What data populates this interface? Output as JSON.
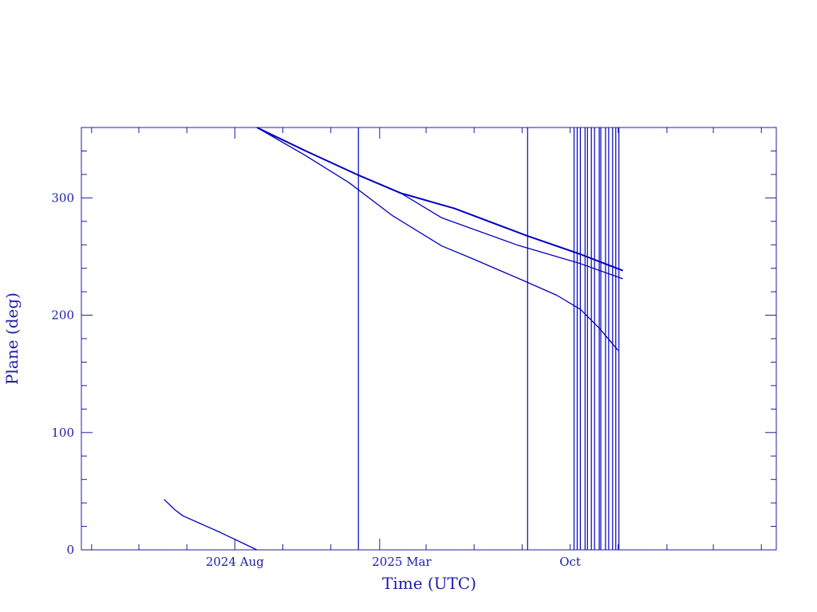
{
  "chart_data": {
    "type": "line",
    "xlabel": "Time (UTC)",
    "ylabel": "Plane (deg)",
    "x_tick_labels": [
      "2024 Aug",
      "2025 Mar",
      "Oct"
    ],
    "xlim": [
      "2024-01-19",
      "2026-06-20"
    ],
    "ylim": [
      0,
      360
    ],
    "y_ticks": [
      0,
      100,
      200,
      300
    ],
    "grid": false,
    "legend": "none",
    "colors": {
      "axes": "#1c1ca8",
      "lines": "#0000c0"
    },
    "series": [
      {
        "points": [
          [
            "2024-05-03",
            43
          ],
          [
            "2024-05-17",
            34
          ],
          [
            "2024-05-27",
            29
          ],
          [
            "2024-07-13",
            15
          ],
          [
            "2024-08-29",
            0
          ]
        ]
      },
      {
        "points": [
          [
            "2024-08-29",
            360
          ],
          [
            "2024-10-30",
            340
          ],
          [
            "2025-01-03",
            320
          ],
          [
            "2025-02-28",
            304
          ],
          [
            "2025-05-07",
            291
          ],
          [
            "2025-08-06",
            268
          ],
          [
            "2025-10-14",
            252
          ],
          [
            "2025-12-07",
            238
          ]
        ]
      },
      {
        "points": [
          [
            "2024-08-29",
            360
          ],
          [
            "2024-10-30",
            340
          ],
          [
            "2025-01-03",
            320
          ],
          [
            "2025-02-28",
            304
          ],
          [
            "2025-04-21",
            283
          ],
          [
            "2025-07-25",
            260
          ],
          [
            "2025-10-14",
            244
          ],
          [
            "2025-12-07",
            231
          ]
        ]
      },
      {
        "points": [
          [
            "2024-08-29",
            360
          ],
          [
            "2024-10-30",
            336
          ],
          [
            "2024-12-24",
            313
          ],
          [
            "2025-02-17",
            285
          ],
          [
            "2025-04-21",
            259
          ],
          [
            "2025-05-27",
            249
          ],
          [
            "2025-08-01",
            230
          ],
          [
            "2025-09-14",
            217
          ],
          [
            "2025-10-14",
            205
          ],
          [
            "2025-11-07",
            189
          ],
          [
            "2025-12-01",
            170
          ]
        ]
      }
    ],
    "vertical_lines": [
      "2025-01-05",
      "2025-08-08",
      "2025-10-06",
      "2025-10-10",
      "2025-10-14",
      "2025-10-20",
      "2025-10-23",
      "2025-10-28",
      "2025-11-01",
      "2025-11-07",
      "2025-11-09",
      "2025-11-15",
      "2025-11-19",
      "2025-11-24",
      "2025-11-28",
      "2025-12-02"
    ]
  }
}
